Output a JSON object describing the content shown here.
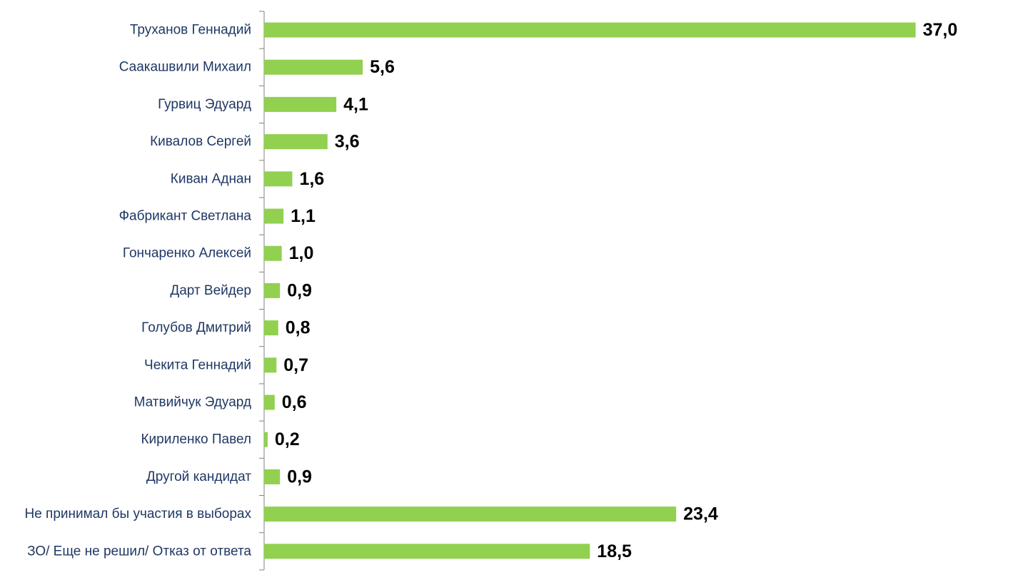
{
  "chart_data": {
    "type": "bar",
    "orientation": "horizontal",
    "categories": [
      "Труханов Геннадий",
      "Саакашвили Михаил",
      "Гурвиц Эдуард",
      "Кивалов Сергей",
      "Киван Аднан",
      "Фабрикант Светлана",
      "Гончаренко Алексей",
      "Дарт Вейдер",
      "Голубов Дмитрий",
      "Чекита Геннадий",
      "Матвийчук Эдуард",
      "Кириленко Павел",
      "Другой кандидат",
      "Не принимал бы участия в выборах",
      "ЗО/ Еще не решил/ Отказ от ответа"
    ],
    "values": [
      37.0,
      5.6,
      4.1,
      3.6,
      1.6,
      1.1,
      1.0,
      0.9,
      0.8,
      0.7,
      0.6,
      0.2,
      0.9,
      23.4,
      18.5
    ],
    "value_labels": [
      "37,0",
      "5,6",
      "4,1",
      "3,6",
      "1,6",
      "1,1",
      "1,0",
      "0,9",
      "0,8",
      "0,7",
      "0,6",
      "0,2",
      "0,9",
      "23,4",
      "18,5"
    ],
    "xlim": [
      0,
      37.3
    ],
    "grid": false,
    "legend": "none",
    "colors": {
      "bar": "#92d050",
      "category_label": "#1f3864",
      "value_label": "#000000",
      "axis": "#808080"
    }
  }
}
